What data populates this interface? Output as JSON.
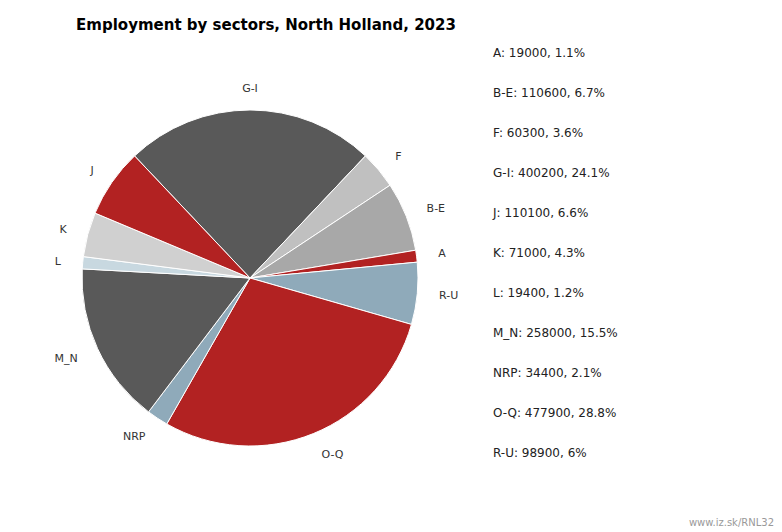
{
  "chart_data": {
    "type": "pie",
    "title": "Employment by sectors, North Holland, 2023",
    "categories": [
      "G-I",
      "F",
      "B-E",
      "A",
      "R-U",
      "O-Q",
      "NRP",
      "M_N",
      "L",
      "K",
      "J"
    ],
    "values": [
      400200,
      60300,
      110600,
      19000,
      98900,
      477900,
      34400,
      258000,
      19400,
      71000,
      110100
    ],
    "colors": [
      "#595959",
      "#c0c0c0",
      "#a8a8a8",
      "#b22222",
      "#8faaba",
      "#b22222",
      "#8faaba",
      "#595959",
      "#c8d8e0",
      "#d0d0d0",
      "#b22222"
    ],
    "annotations": [
      "A: 19000, 1.1%",
      "B-E: 110600, 6.7%",
      "F: 60300, 3.6%",
      "G-I: 400200, 24.1%",
      "J: 110100, 6.6%",
      "K: 71000, 4.3%",
      "L: 19400, 1.2%",
      "M_N: 258000, 15.5%",
      "NRP: 34400, 2.1%",
      "O-Q: 477900, 28.8%",
      "R-U: 98900, 6%",
      "www.iz.sk/RNL32"
    ]
  }
}
